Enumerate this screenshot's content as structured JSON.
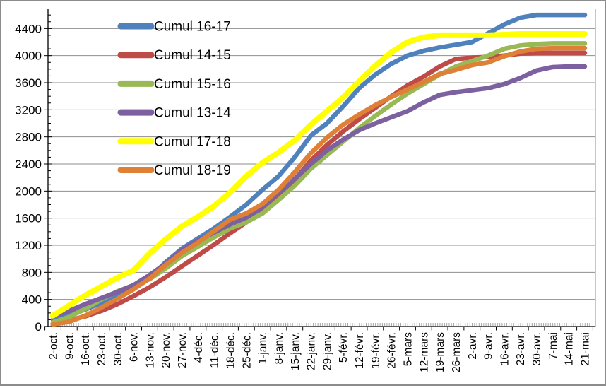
{
  "chart_data": {
    "type": "line",
    "title": "",
    "xlabel": "",
    "ylabel": "",
    "grid": true,
    "legend_position": "inside-top-left",
    "y_axis": {
      "min": 0,
      "max": 4400,
      "major_step": 400,
      "minor_step": 100,
      "tick_labels": [
        "0",
        "400",
        "800",
        "1200",
        "1600",
        "2000",
        "2400",
        "2800",
        "3200",
        "3600",
        "4000",
        "4400"
      ]
    },
    "categories": [
      "2-oct.",
      "9-oct.",
      "16-oct.",
      "23-oct.",
      "30-oct.",
      "6-nov.",
      "13-nov.",
      "20-nov.",
      "27-nov.",
      "4-déc.",
      "11-déc.",
      "18-déc.",
      "25-déc.",
      "1-janv.",
      "8-janv.",
      "15-janv.",
      "22-janv.",
      "29-janv.",
      "5-févr.",
      "12-févr.",
      "19-févr.",
      "26-févr.",
      "5-mars",
      "12-mars",
      "19-mars",
      "26-mars",
      "2-avr.",
      "9-avr.",
      "16-avr.",
      "23-avr.",
      "30-avr.",
      "7-mai",
      "14-mai",
      "21-mai"
    ],
    "series": [
      {
        "name": "Cumul 16-17",
        "color": "#4F81BD",
        "values": [
          100,
          170,
          250,
          350,
          460,
          580,
          720,
          950,
          1150,
          1300,
          1450,
          1620,
          1800,
          2020,
          2220,
          2500,
          2820,
          3000,
          3250,
          3520,
          3720,
          3880,
          4000,
          4070,
          4120,
          4160,
          4200,
          4330,
          4460,
          4560,
          4600,
          4600,
          4600,
          4600
        ]
      },
      {
        "name": "Cumul 14-15",
        "color": "#BE4B48",
        "values": [
          40,
          90,
          150,
          230,
          330,
          450,
          580,
          730,
          890,
          1050,
          1210,
          1380,
          1540,
          1710,
          1920,
          2170,
          2450,
          2680,
          2880,
          3060,
          3230,
          3400,
          3560,
          3690,
          3840,
          3950,
          3970,
          3980,
          4000,
          4030,
          4040,
          4040,
          4040,
          4040
        ]
      },
      {
        "name": "Cumul 15-16",
        "color": "#98B954",
        "values": [
          60,
          140,
          260,
          400,
          520,
          610,
          700,
          860,
          1040,
          1180,
          1320,
          1450,
          1540,
          1670,
          1870,
          2080,
          2330,
          2530,
          2730,
          2930,
          3110,
          3280,
          3440,
          3580,
          3720,
          3840,
          3920,
          4000,
          4100,
          4150,
          4170,
          4180,
          4180,
          4180
        ]
      },
      {
        "name": "Cumul 13-14",
        "color": "#7D60A0",
        "values": [
          150,
          230,
          330,
          420,
          510,
          610,
          760,
          930,
          1130,
          1270,
          1390,
          1510,
          1610,
          1760,
          1970,
          2180,
          2400,
          2600,
          2760,
          2900,
          3000,
          3090,
          3180,
          3310,
          3420,
          3460,
          3490,
          3520,
          3580,
          3670,
          3780,
          3830,
          3840,
          3840
        ]
      },
      {
        "name": "Cumul 17-18",
        "color": "#FFFF00",
        "values": [
          160,
          310,
          460,
          590,
          720,
          830,
          1080,
          1290,
          1480,
          1620,
          1780,
          1980,
          2220,
          2420,
          2570,
          2750,
          2980,
          3180,
          3380,
          3620,
          3850,
          4050,
          4200,
          4270,
          4300,
          4300,
          4300,
          4300,
          4310,
          4320,
          4320,
          4320,
          4320,
          4320
        ]
      },
      {
        "name": "Cumul 18-19",
        "color": "#DE8137",
        "values": [
          30,
          70,
          160,
          280,
          410,
          550,
          710,
          910,
          1090,
          1240,
          1410,
          1580,
          1670,
          1810,
          2020,
          2280,
          2560,
          2790,
          2980,
          3130,
          3270,
          3390,
          3500,
          3610,
          3730,
          3790,
          3860,
          3900,
          3990,
          4060,
          4100,
          4110,
          4110,
          4110
        ]
      }
    ]
  },
  "colors": {
    "gridline": "#8E8E8E",
    "axis": "#000000",
    "minor_tick_comb": "#A6A6A6",
    "background": "#FFFFFF",
    "frame_border": "#8C8C8C",
    "label_text": "#000000"
  }
}
